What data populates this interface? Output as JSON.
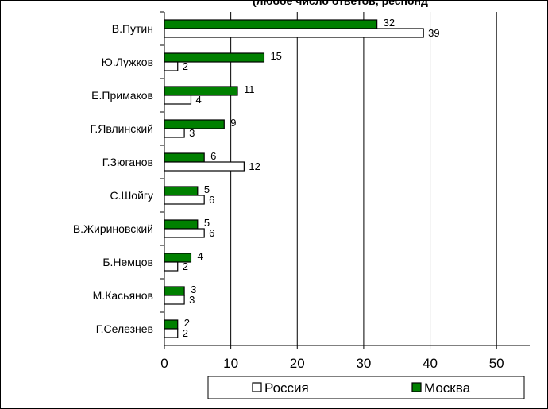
{
  "chart_data": {
    "type": "bar",
    "orientation": "horizontal",
    "title": "(любое число ответов, респонд",
    "categories": [
      "В.Путин",
      "Ю.Лужков",
      "Е.Примаков",
      "Г.Явлинский",
      "Г.Зюганов",
      "С.Шойгу",
      "В.Жириновский",
      "Б.Немцов",
      "М.Касьянов",
      "Г.Селезнев"
    ],
    "series": [
      {
        "name": "Москва",
        "color": "#008000",
        "values": [
          32,
          15,
          11,
          9,
          6,
          5,
          5,
          4,
          3,
          2
        ]
      },
      {
        "name": "Россия",
        "color": "#ffffff",
        "values": [
          39,
          2,
          4,
          3,
          12,
          6,
          6,
          2,
          3,
          2
        ]
      }
    ],
    "xlim": [
      0,
      55
    ],
    "xticks": [
      "0",
      "10",
      "20",
      "30",
      "40",
      "50"
    ],
    "grid": true,
    "legend": {
      "position": "bottom-right",
      "entries": [
        "Россия",
        "Москва"
      ]
    }
  }
}
